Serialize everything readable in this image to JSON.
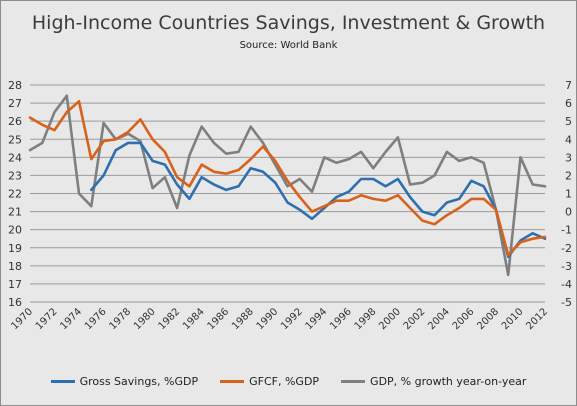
{
  "chart_data": {
    "type": "line",
    "title": "High-Income Countries Savings, Investment & Growth",
    "subtitle": "Source: World Bank",
    "x": [
      1970,
      1971,
      1972,
      1973,
      1974,
      1975,
      1976,
      1977,
      1978,
      1979,
      1980,
      1981,
      1982,
      1983,
      1984,
      1985,
      1986,
      1987,
      1988,
      1989,
      1990,
      1991,
      1992,
      1993,
      1994,
      1995,
      1996,
      1997,
      1998,
      1999,
      2000,
      2001,
      2002,
      2003,
      2004,
      2005,
      2006,
      2007,
      2008,
      2009,
      2010,
      2011,
      2012
    ],
    "x_tick_labels": [
      "1970",
      "1972",
      "1974",
      "1976",
      "1978",
      "1980",
      "1982",
      "1984",
      "1986",
      "1988",
      "1990",
      "1992",
      "1994",
      "1996",
      "1998",
      "2000",
      "2002",
      "2004",
      "2006",
      "2008",
      "2010",
      "2012"
    ],
    "left_axis": {
      "min": 16,
      "max": 28,
      "ticks": [
        "16",
        "17",
        "18",
        "19",
        "20",
        "21",
        "22",
        "23",
        "24",
        "25",
        "26",
        "27",
        "28"
      ]
    },
    "right_axis": {
      "min": -5,
      "max": 7,
      "ticks": [
        "-5",
        "-4",
        "-3",
        "-2",
        "-1",
        "0",
        "1",
        "2",
        "3",
        "4",
        "5",
        "6",
        "7"
      ]
    },
    "series": [
      {
        "name": "Gross Savings, %GDP",
        "axis": "left",
        "color": "#2e6fb0",
        "values": [
          null,
          null,
          null,
          null,
          null,
          22.2,
          23.0,
          24.4,
          24.8,
          24.8,
          23.8,
          23.6,
          22.5,
          21.7,
          22.9,
          22.5,
          22.2,
          22.4,
          23.4,
          23.2,
          22.6,
          21.5,
          21.1,
          20.6,
          21.2,
          21.8,
          22.1,
          22.8,
          22.8,
          22.4,
          22.8,
          21.8,
          21.0,
          20.8,
          21.5,
          21.7,
          22.7,
          22.4,
          21.1,
          18.5,
          19.4,
          19.8,
          19.5
        ]
      },
      {
        "name": "GFCF, %GDP",
        "axis": "left",
        "color": "#d8621b",
        "values": [
          26.2,
          25.8,
          25.5,
          26.5,
          27.1,
          23.9,
          24.9,
          25.0,
          25.4,
          26.1,
          25.0,
          24.3,
          22.9,
          22.4,
          23.6,
          23.2,
          23.1,
          23.3,
          23.9,
          24.6,
          23.8,
          22.7,
          21.8,
          21.0,
          21.3,
          21.6,
          21.6,
          21.9,
          21.7,
          21.6,
          21.9,
          21.2,
          20.5,
          20.3,
          20.8,
          21.2,
          21.7,
          21.7,
          21.1,
          18.6,
          19.3,
          19.5,
          19.6
        ]
      },
      {
        "name": "GDP, % growth year-on-year",
        "axis": "right",
        "color": "#7f7f7f",
        "values": [
          3.4,
          3.8,
          5.5,
          6.4,
          1.0,
          0.3,
          4.9,
          4.0,
          4.3,
          3.9,
          1.3,
          1.9,
          0.2,
          3.1,
          4.7,
          3.8,
          3.2,
          3.3,
          4.7,
          3.8,
          2.6,
          1.4,
          1.8,
          1.1,
          3.0,
          2.7,
          2.9,
          3.3,
          2.4,
          3.3,
          4.1,
          1.5,
          1.6,
          2.0,
          3.3,
          2.8,
          3.0,
          2.7,
          0.1,
          -3.5,
          3.0,
          1.5,
          1.4
        ]
      }
    ],
    "legend_position": "bottom",
    "grid": true
  }
}
